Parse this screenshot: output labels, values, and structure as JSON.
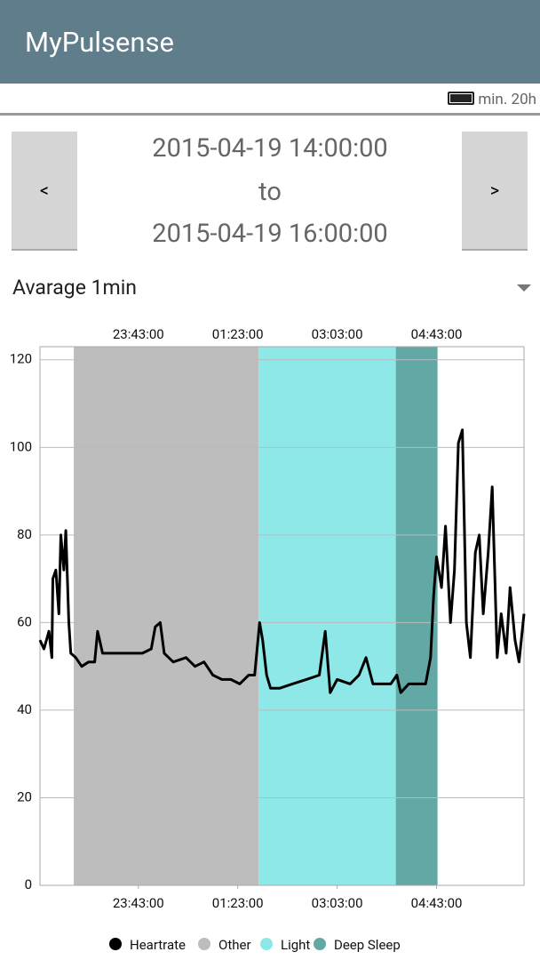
{
  "app": {
    "title": "MyPulsense",
    "battery": "min. 20h",
    "range_start": "2015-04-19 14:00:00",
    "range_to": "to",
    "range_end": "2015-04-19 16:00:00",
    "prev": "<",
    "next": ">",
    "dropdown": "Avarage 1min"
  },
  "chart_data": {
    "type": "line",
    "xlim": [
      1324,
      1811
    ],
    "xticks": [
      {
        "value": 1423,
        "label": "23:43:00"
      },
      {
        "value": 1523,
        "label": "01:23:00"
      },
      {
        "value": 1623,
        "label": "03:03:00"
      },
      {
        "value": 1723,
        "label": "04:43:00"
      }
    ],
    "ylim": [
      0,
      123
    ],
    "yticks": [
      0,
      20,
      40,
      60,
      80,
      100,
      120
    ],
    "grid": true,
    "bands": [
      {
        "name": "Other",
        "color": "#bdbdbd",
        "start": 1358,
        "end": 1544
      },
      {
        "name": "Light",
        "color": "#8ee8e8",
        "start": 1544,
        "end": 1682
      },
      {
        "name": "Deep  Sleep",
        "color": "#62a8a5",
        "start": 1682,
        "end": 1724
      }
    ],
    "series": [
      {
        "name": "Heartrate",
        "color": "#000000",
        "x": [
          1324,
          1328,
          1333,
          1336,
          1337,
          1340,
          1343,
          1345,
          1348,
          1350,
          1353,
          1355,
          1360,
          1366,
          1373,
          1379,
          1382,
          1387,
          1395,
          1409,
          1427,
          1436,
          1440,
          1445,
          1449,
          1458,
          1471,
          1480,
          1489,
          1498,
          1507,
          1516,
          1525,
          1534,
          1540,
          1545,
          1548,
          1552,
          1556,
          1565,
          1578,
          1592,
          1605,
          1611,
          1616,
          1623,
          1636,
          1645,
          1652,
          1659,
          1677,
          1683,
          1687,
          1695,
          1712,
          1717,
          1720,
          1723,
          1728,
          1732,
          1737,
          1741,
          1745,
          1749,
          1753,
          1757,
          1762,
          1766,
          1770,
          1775,
          1779,
          1784,
          1788,
          1793,
          1797,
          1802,
          1806,
          1811
        ],
        "values": [
          56,
          54,
          58,
          52,
          70,
          72,
          62,
          80,
          72,
          81,
          60,
          53,
          52,
          50,
          51,
          51,
          58,
          53,
          53,
          53,
          53,
          54,
          59,
          60,
          53,
          51,
          52,
          50,
          51,
          48,
          47,
          47,
          46,
          48,
          48,
          60,
          56,
          48,
          45,
          45,
          46,
          47,
          48,
          58,
          44,
          47,
          46,
          48,
          52,
          46,
          46,
          48,
          44,
          46,
          46,
          52,
          66,
          75,
          68,
          82,
          60,
          72,
          101,
          104,
          60,
          52,
          76,
          80,
          62,
          76,
          91,
          52,
          62,
          53,
          68,
          56,
          51,
          62
        ]
      }
    ]
  }
}
